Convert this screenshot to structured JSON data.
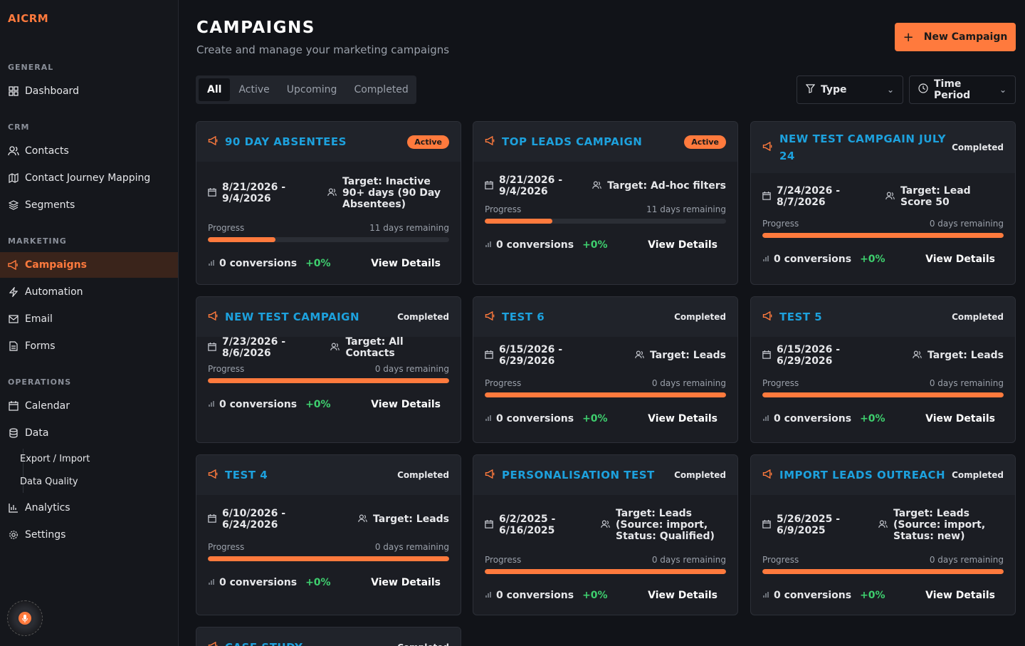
{
  "brand": "AICRM",
  "sidebar": {
    "sections": {
      "general": "GENERAL",
      "crm": "CRM",
      "marketing": "MARKETING",
      "operations": "OPERATIONS"
    },
    "items": {
      "dashboard": "Dashboard",
      "contacts": "Contacts",
      "journey": "Contact Journey Mapping",
      "segments": "Segments",
      "campaigns": "Campaigns",
      "automation": "Automation",
      "email": "Email",
      "forms": "Forms",
      "calendar": "Calendar",
      "data": "Data",
      "export_import": "Export / Import",
      "data_quality": "Data Quality",
      "analytics": "Analytics",
      "settings": "Settings"
    }
  },
  "header": {
    "title": "CAMPAIGNS",
    "subtitle": "Create and manage your marketing campaigns",
    "new_button": "New Campaign"
  },
  "tabs": [
    "All",
    "Active",
    "Upcoming",
    "Completed"
  ],
  "filters": {
    "type": "Type",
    "time_period": "Time Period"
  },
  "progress_label": "Progress",
  "view_details": "View Details",
  "campaigns": [
    {
      "title": "90 DAY ABSENTEES",
      "status": "Active",
      "date_line1": "8/21/2026 -",
      "date_line2": "9/4/2026",
      "target": "Target: Inactive 90+ days (90 Day Absentees)",
      "remaining": "11 days remaining",
      "progress": 0.28,
      "conversions": "0 conversions",
      "change": "+0%"
    },
    {
      "title": "TOP LEADS CAMPAIGN",
      "status": "Active",
      "date_line1": "8/21/2026 -",
      "date_line2": "9/4/2026",
      "target": "Target: Ad-hoc filters",
      "remaining": "11 days remaining",
      "progress": 0.28,
      "conversions": "0 conversions",
      "change": "+0%"
    },
    {
      "title": "NEW TEST CAMPGAIN JULY 24",
      "status": "Completed",
      "date_line1": "7/24/2026 - 8/7/2026",
      "date_line2": "",
      "target": "Target: Lead Score 50",
      "remaining": "0 days remaining",
      "progress": 1,
      "conversions": "0 conversions",
      "change": "+0%"
    },
    {
      "title": "NEW TEST CAMPAIGN",
      "status": "Completed",
      "date_line1": "7/23/2026 - 8/6/2026",
      "date_line2": "",
      "target": "Target: All Contacts",
      "remaining": "0 days remaining",
      "progress": 1,
      "conversions": "0 conversions",
      "change": "+0%"
    },
    {
      "title": "TEST 6",
      "status": "Completed",
      "date_line1": "6/15/2026 -",
      "date_line2": "6/29/2026",
      "target": "Target: Leads",
      "remaining": "0 days remaining",
      "progress": 1,
      "conversions": "0 conversions",
      "change": "+0%"
    },
    {
      "title": "TEST 5",
      "status": "Completed",
      "date_line1": "6/15/2026 -",
      "date_line2": "6/29/2026",
      "target": "Target: Leads",
      "remaining": "0 days remaining",
      "progress": 1,
      "conversions": "0 conversions",
      "change": "+0%"
    },
    {
      "title": "TEST 4",
      "status": "Completed",
      "date_line1": "6/10/2026 -",
      "date_line2": "6/24/2026",
      "target": "Target: Leads",
      "remaining": "0 days remaining",
      "progress": 1,
      "conversions": "0 conversions",
      "change": "+0%"
    },
    {
      "title": "PERSONALISATION TEST",
      "status": "Completed",
      "date_line1": "6/2/2025 -",
      "date_line2": "6/16/2025",
      "target": "Target: Leads (Source: import, Status: Qualified)",
      "remaining": "0 days remaining",
      "progress": 1,
      "conversions": "0 conversions",
      "change": "+0%"
    },
    {
      "title": "IMPORT LEADS OUTREACH",
      "status": "Completed",
      "date_line1": "5/26/2025 -",
      "date_line2": "6/9/2025",
      "target": "Target: Leads (Source: import, Status: new)",
      "remaining": "0 days remaining",
      "progress": 1,
      "conversions": "0 conversions",
      "change": "+0%"
    },
    {
      "title": "CASE STUDY",
      "status": "Completed"
    }
  ],
  "colors": {
    "accent": "#ff7a3d",
    "title_blue": "#1da1dd",
    "positive": "#3ecf6e"
  },
  "icons": {
    "dashboard": "grid-icon",
    "contacts": "users-icon",
    "journey": "map-icon",
    "segments": "layers-icon",
    "campaigns": "megaphone-icon",
    "automation": "bolt-icon",
    "email": "mail-icon",
    "forms": "file-icon",
    "calendar": "calendar-icon",
    "data": "database-icon",
    "analytics": "bar-chart-icon",
    "settings": "gear-icon"
  }
}
